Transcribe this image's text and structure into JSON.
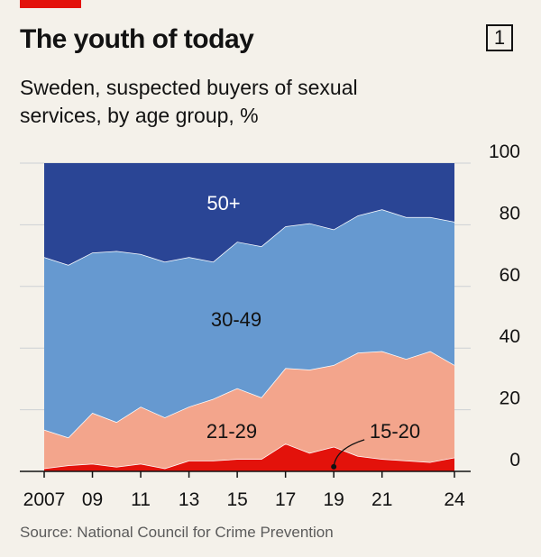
{
  "header": {
    "badge": "1",
    "title": "The youth of today",
    "subtitle": "Sweden, suspected buyers of sexual services, by age group, %"
  },
  "source": "Source: National Council for Crime Prevention",
  "colors": {
    "accent": "#e3120b",
    "s15_20": "#e3120b",
    "s21_29": "#f3a58c",
    "s30_49": "#6699d0",
    "s50plus": "#2a4595",
    "background": "#f4f1ea"
  },
  "chart_data": {
    "type": "area",
    "stacked": true,
    "x": [
      2007,
      2008,
      2009,
      2010,
      2011,
      2012,
      2013,
      2014,
      2015,
      2016,
      2017,
      2018,
      2019,
      2020,
      2021,
      2022,
      2023,
      2024
    ],
    "x_tick_labels": [
      "2007",
      "09",
      "11",
      "13",
      "15",
      "17",
      "19",
      "21",
      "24"
    ],
    "x_tick_values": [
      2007,
      2009,
      2011,
      2013,
      2015,
      2017,
      2019,
      2021,
      2024
    ],
    "ylim": [
      0,
      100
    ],
    "y_ticks": [
      0,
      20,
      40,
      60,
      80,
      100
    ],
    "y_axis_position": "right",
    "gridlines": true,
    "series": [
      {
        "name": "15-20",
        "values": [
          1,
          2,
          2.5,
          1.5,
          2.5,
          1,
          3.5,
          3.5,
          4,
          4,
          9,
          6,
          8,
          5,
          4,
          3.5,
          3,
          4.5
        ]
      },
      {
        "name": "21-29",
        "values": [
          12.5,
          9,
          16.5,
          14.5,
          18.5,
          16.5,
          17.5,
          20,
          23,
          20,
          24.5,
          27,
          26.5,
          33.5,
          35,
          33,
          36,
          30
        ]
      },
      {
        "name": "30-49",
        "values": [
          56,
          56,
          52,
          55.5,
          49.5,
          50.5,
          48.5,
          44.5,
          47.5,
          49,
          46,
          47.5,
          44,
          44.5,
          46,
          46,
          43.5,
          46.5
        ]
      },
      {
        "name": "50+",
        "values": [
          30.5,
          33,
          29,
          28.5,
          29.5,
          32,
          30.5,
          32,
          25.5,
          27,
          20.5,
          19.5,
          21.5,
          17,
          15,
          17.5,
          17.5,
          19
        ]
      }
    ]
  }
}
